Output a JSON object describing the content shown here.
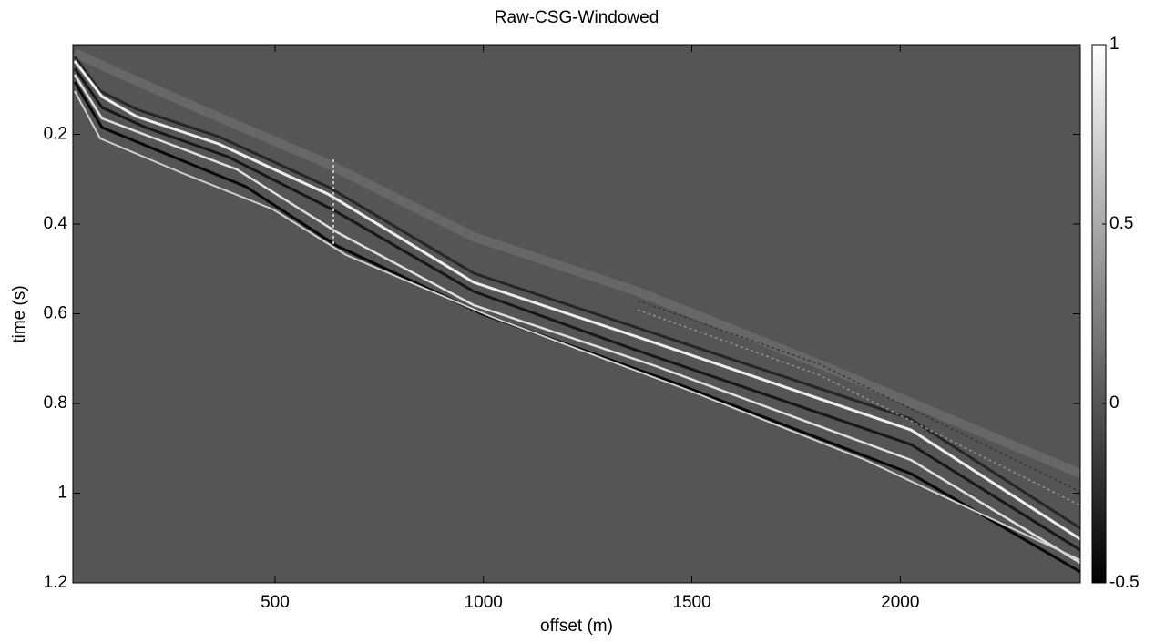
{
  "chart_data": {
    "type": "image",
    "title": "Raw-CSG-Windowed",
    "xlabel": "offset (m)",
    "ylabel": "time (s)",
    "xlim": [
      15,
      2432
    ],
    "xticks": [
      500,
      1000,
      1500,
      2000
    ],
    "ylim": [
      0,
      1.2
    ],
    "yticks": [
      0.2,
      0.4,
      0.6,
      0.8,
      1,
      1.2
    ],
    "y_reversed": true,
    "colormap": "gray",
    "clim": [
      -0.5,
      1
    ],
    "cticks": [
      -0.5,
      0,
      0.5,
      1
    ]
  }
}
